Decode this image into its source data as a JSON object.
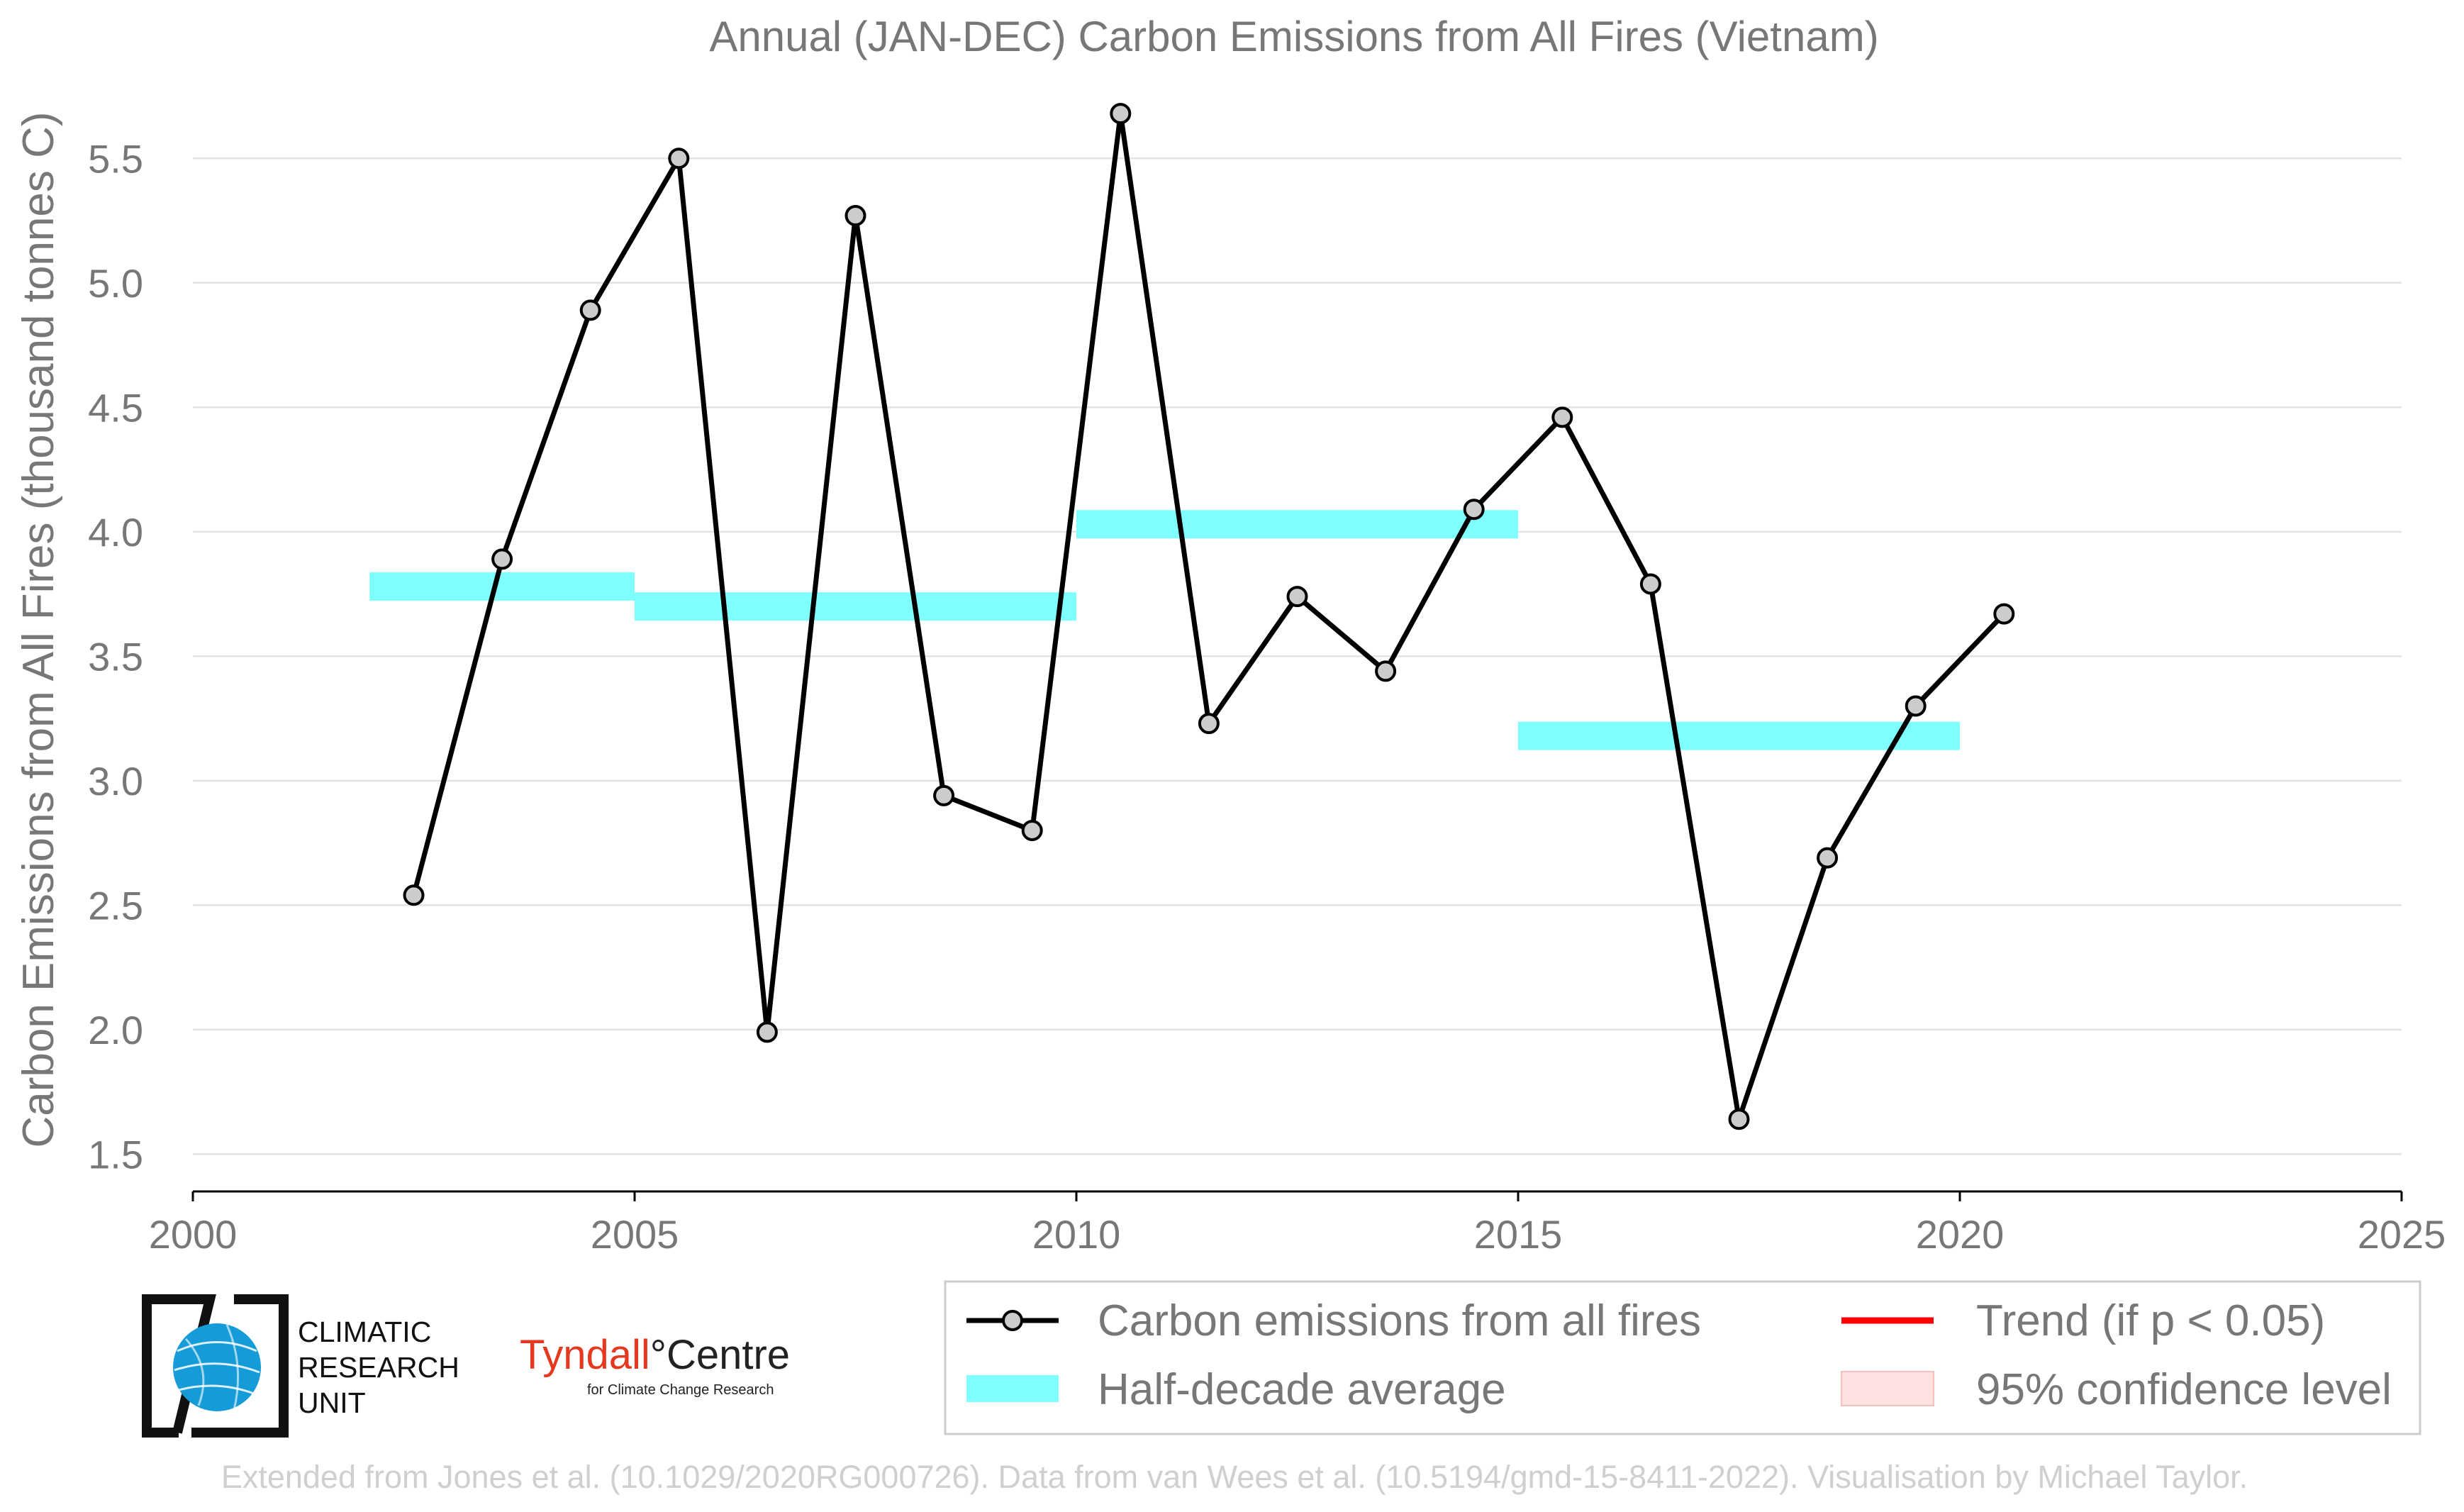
{
  "chart_data": {
    "type": "line",
    "title": "Annual (JAN-DEC) Carbon Emissions from All Fires (Vietnam)",
    "xlabel": "",
    "ylabel": "Carbon Emissions from All Fires (thousand tonnes C)",
    "xlim": [
      2000,
      2025
    ],
    "ylim": [
      1.35,
      5.8
    ],
    "xticks": [
      2000,
      2005,
      2010,
      2015,
      2020,
      2025
    ],
    "yticks": [
      1.5,
      2.0,
      2.5,
      3.0,
      3.5,
      4.0,
      4.5,
      5.0,
      5.5
    ],
    "grid": "horizontal",
    "series": [
      {
        "name": "Carbon emissions from all fires",
        "color": "#000000",
        "marker_fill": "#cccccc",
        "x": [
          2002.5,
          2003.5,
          2004.5,
          2005.5,
          2006.5,
          2007.5,
          2008.5,
          2009.5,
          2010.5,
          2011.5,
          2012.5,
          2013.5,
          2014.5,
          2015.5,
          2016.5,
          2017.5,
          2018.5,
          2019.5,
          2020.5
        ],
        "y": [
          2.54,
          3.89,
          4.89,
          5.5,
          1.99,
          5.27,
          2.94,
          2.8,
          5.68,
          3.23,
          3.74,
          3.44,
          4.09,
          4.46,
          3.79,
          1.64,
          2.69,
          3.3,
          3.67
        ]
      }
    ],
    "half_decade_average": {
      "name": "Half-decade average",
      "color": "#80ffff",
      "segments": [
        {
          "x0": 2002,
          "x1": 2005,
          "y": 3.78
        },
        {
          "x0": 2005,
          "x1": 2010,
          "y": 3.7
        },
        {
          "x0": 2010,
          "x1": 2015,
          "y": 4.03
        },
        {
          "x0": 2015,
          "x1": 2020,
          "y": 3.18
        }
      ]
    },
    "legend": {
      "placement": "bottom-right",
      "items": [
        {
          "label": "Carbon emissions from all fires",
          "kind": "line-marker",
          "color": "#000000"
        },
        {
          "label": "Trend (if p < 0.05)",
          "kind": "line",
          "color": "#ff0000"
        },
        {
          "label": "Half-decade average",
          "kind": "band",
          "color": "#80ffff"
        },
        {
          "label": "95% confidence level",
          "kind": "patch",
          "color": "#ffe0e0"
        }
      ]
    }
  },
  "logos": {
    "cru_lines": [
      "CLIMATIC",
      "RESEARCH",
      "UNIT"
    ],
    "tyndall_main": "Tyndall",
    "tyndall_centre": "°Centre",
    "tyndall_sub": "for Climate Change Research"
  },
  "credit": "Extended from Jones et al. (10.1029/2020RG000726). Data from van Wees et al. (10.5194/gmd-15-8411-2022). Visualisation by Michael Taylor."
}
